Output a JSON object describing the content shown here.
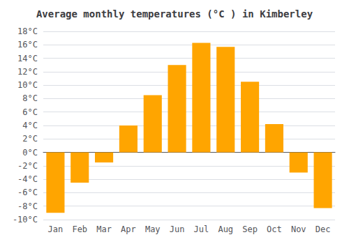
{
  "chart_data": {
    "type": "bar",
    "title": "Average monthly temperatures (°C ) in Kimberley",
    "categories": [
      "Jan",
      "Feb",
      "Mar",
      "Apr",
      "May",
      "Jun",
      "Jul",
      "Aug",
      "Sep",
      "Oct",
      "Nov",
      "Dec"
    ],
    "values": [
      -9.0,
      -4.5,
      -1.5,
      4.0,
      8.5,
      13.0,
      16.3,
      15.7,
      10.5,
      4.2,
      -3.0,
      -8.3
    ],
    "color": "#FFA500",
    "ylim": [
      -10,
      18
    ],
    "yticks": [
      {
        "value": -10,
        "label": "-10°C"
      },
      {
        "value": -8,
        "label": "-8°C"
      },
      {
        "value": -6,
        "label": "-6°C"
      },
      {
        "value": -4,
        "label": "-4°C"
      },
      {
        "value": -2,
        "label": "-2°C"
      },
      {
        "value": 0,
        "label": "0°C"
      },
      {
        "value": 2,
        "label": "2°C"
      },
      {
        "value": 4,
        "label": "4°C"
      },
      {
        "value": 6,
        "label": "6°C"
      },
      {
        "value": 8,
        "label": "8°C"
      },
      {
        "value": 10,
        "label": "10°C"
      },
      {
        "value": 12,
        "label": "12°C"
      },
      {
        "value": 14,
        "label": "14°C"
      },
      {
        "value": 16,
        "label": "16°C"
      },
      {
        "value": 18,
        "label": "18°C"
      }
    ],
    "grid": true
  }
}
